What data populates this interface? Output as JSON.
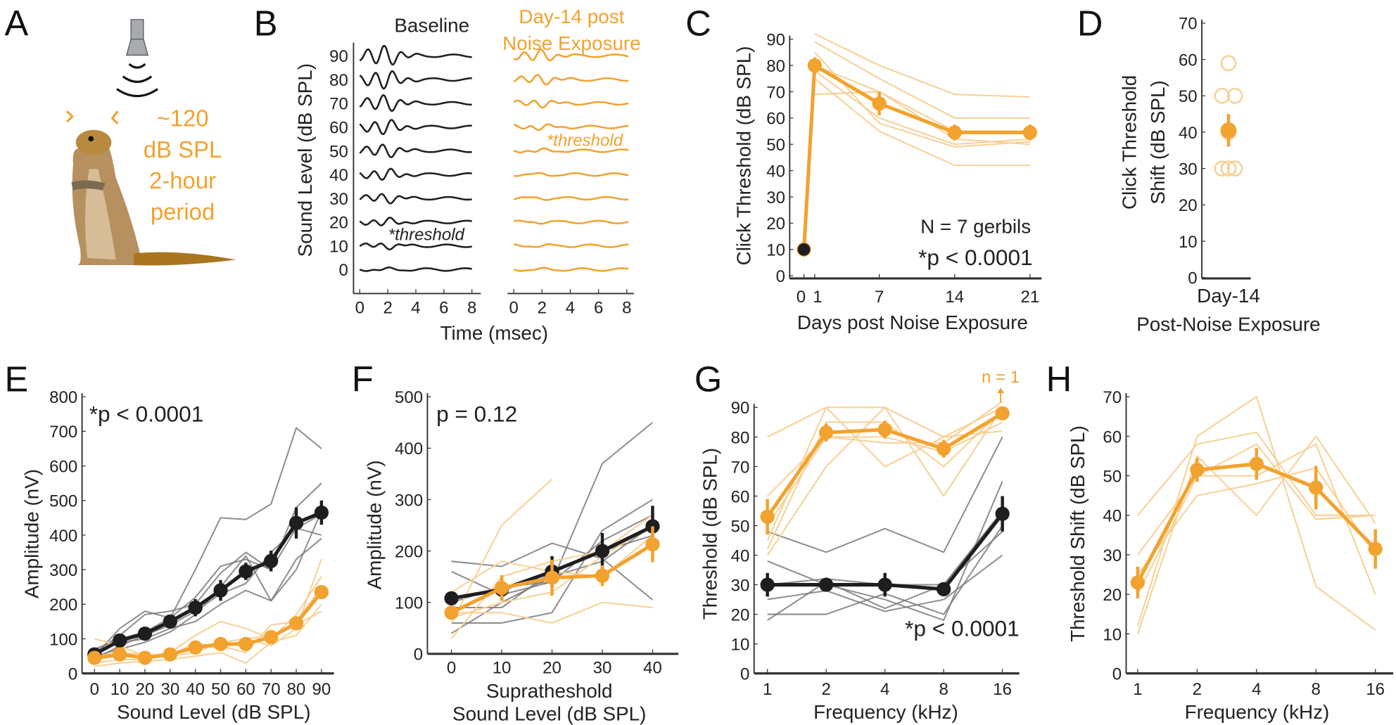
{
  "colors": {
    "orange": "#F2A22E",
    "orange_light": "#F8D095",
    "black": "#1e1e1e",
    "gray": "#7a7a7a",
    "speaker": "#A7ABB0"
  },
  "panel_a": {
    "label": "A",
    "exposure_text": [
      "~120",
      "dB SPL",
      "2-hour",
      "period"
    ],
    "icons": [
      "speaker-icon",
      "sound-wave-icon",
      "gerbil-illustration"
    ]
  },
  "chart_data": [
    {
      "panel": "B",
      "type": "line",
      "titles": {
        "baseline": "Baseline",
        "post": [
          "Day-14 post",
          "Noise Exposure"
        ]
      },
      "ylabel": "Sound Level (dB SPL)",
      "xlabel": "Time (msec)",
      "levels": [
        0,
        10,
        20,
        30,
        40,
        50,
        60,
        70,
        80,
        90
      ],
      "xticks": [
        0,
        2,
        4,
        6,
        8
      ],
      "xlim": [
        0,
        8
      ],
      "threshold_label": "*threshold",
      "thresholds": {
        "baseline": 10,
        "post": 50
      }
    },
    {
      "panel": "C",
      "type": "line",
      "ylabel": "Click Threshold (dB SPL)",
      "xlabel": "Days post Noise Exposure",
      "yticks": [
        0,
        10,
        20,
        30,
        40,
        50,
        60,
        70,
        80,
        90
      ],
      "ylim": [
        0,
        90
      ],
      "xticks": [
        0,
        1,
        7,
        14,
        21
      ],
      "xticklabels": [
        "0",
        "1",
        "7",
        "14",
        "21"
      ],
      "baseline_point": {
        "x": 0,
        "y": 10
      },
      "mean": {
        "x": [
          0,
          1,
          7,
          14,
          21
        ],
        "y": [
          10,
          80,
          65.5,
          54.5,
          54.5
        ],
        "err": [
          0,
          3,
          4.5,
          3,
          3
        ]
      },
      "individuals": {
        "x": [
          1,
          7,
          14,
          21
        ],
        "y": [
          [
            92,
            80,
            69,
            68
          ],
          [
            89,
            75,
            60,
            60
          ],
          [
            80,
            70,
            55,
            55
          ],
          [
            69,
            70,
            52,
            50
          ],
          [
            78,
            60,
            50,
            52
          ],
          [
            85,
            58,
            49,
            51
          ],
          [
            75,
            55,
            42,
            42
          ]
        ]
      },
      "annotations": [
        "N = 7 gerbils",
        "*p < 0.0001"
      ]
    },
    {
      "panel": "D",
      "type": "scatter",
      "ylabel": [
        "Click Threshold",
        "Shift (dB SPL)"
      ],
      "xlabel": "Post-Noise Exposure",
      "category": "Day-14",
      "yticks": [
        0,
        10,
        20,
        30,
        40,
        50,
        60,
        70
      ],
      "ylim": [
        0,
        70
      ],
      "values": [
        59,
        50,
        50,
        40,
        30,
        30,
        30
      ],
      "mean": 40.5,
      "err": 4.5
    },
    {
      "panel": "E",
      "type": "line",
      "ylabel": "Amplitude (nV)",
      "xlabel": "Sound Level (dB SPL)",
      "yticks": [
        0,
        100,
        200,
        300,
        400,
        500,
        600,
        700,
        800
      ],
      "ylim": [
        0,
        800
      ],
      "x": [
        0,
        10,
        20,
        30,
        40,
        50,
        60,
        70,
        80,
        90
      ],
      "series": [
        {
          "color": "black",
          "y": [
            55,
            95,
            115,
            150,
            190,
            240,
            295,
            325,
            435,
            465
          ],
          "err": [
            10,
            10,
            12,
            15,
            25,
            30,
            25,
            30,
            45,
            35
          ]
        },
        {
          "color": "orange",
          "y": [
            45,
            55,
            45,
            55,
            75,
            85,
            85,
            105,
            145,
            235
          ],
          "err": [
            15,
            10,
            12,
            10,
            12,
            12,
            15,
            12,
            15,
            20
          ]
        }
      ],
      "individuals_black": [
        [
          50,
          130,
          180,
          160,
          300,
          450,
          445,
          490,
          710,
          650
        ],
        [
          70,
          100,
          120,
          160,
          220,
          310,
          330,
          300,
          480,
          550
        ],
        [
          40,
          80,
          110,
          140,
          180,
          230,
          260,
          350,
          420,
          460
        ],
        [
          60,
          90,
          100,
          130,
          150,
          200,
          240,
          210,
          330,
          390
        ],
        [
          50,
          70,
          90,
          120,
          170,
          250,
          340,
          210,
          300,
          470
        ],
        [
          60,
          110,
          170,
          180,
          200,
          290,
          350,
          300,
          420,
          400
        ]
      ],
      "individuals_orange": [
        [
          100,
          80,
          50,
          60,
          110,
          150,
          130,
          100,
          170,
          280
        ],
        [
          30,
          40,
          40,
          60,
          70,
          80,
          60,
          140,
          150,
          250
        ],
        [
          20,
          30,
          35,
          40,
          50,
          60,
          30,
          90,
          110,
          200
        ],
        [
          50,
          60,
          55,
          50,
          60,
          90,
          100,
          80,
          130,
          330
        ],
        [
          40,
          50,
          45,
          50,
          90,
          70,
          100,
          110,
          140,
          180
        ]
      ],
      "annotation": "*p < 0.0001"
    },
    {
      "panel": "F",
      "type": "line",
      "ylabel": "Amplitude (nV)",
      "xlabel": [
        "Supratheshold",
        "Sound Level (dB SPL)"
      ],
      "yticks": [
        0,
        100,
        200,
        300,
        400,
        500
      ],
      "ylim": [
        0,
        500
      ],
      "x": [
        0,
        10,
        20,
        30,
        40
      ],
      "series": [
        {
          "color": "black",
          "y": [
            108,
            125,
            160,
            200,
            248
          ],
          "err": [
            12,
            20,
            30,
            35,
            40
          ]
        },
        {
          "color": "orange",
          "y": [
            80,
            128,
            148,
            152,
            213
          ],
          "err": [
            10,
            25,
            35,
            20,
            35
          ]
        }
      ],
      "individuals_black": [
        [
          180,
          170,
          215,
          185,
          105
        ],
        [
          160,
          115,
          140,
          370,
          450
        ],
        [
          60,
          60,
          80,
          240,
          300
        ],
        [
          40,
          100,
          150,
          180,
          250
        ],
        [
          100,
          130,
          140,
          220,
          270
        ],
        [
          90,
          90,
          160,
          200,
          230
        ]
      ],
      "individuals_orange": [
        [
          60,
          250,
          340
        ],
        [
          80,
          80,
          60,
          100,
          90
        ],
        [
          30,
          150,
          180,
          200,
          270
        ],
        [
          120,
          180,
          160,
          150,
          230
        ],
        [
          70,
          100,
          120,
          190,
          250
        ]
      ],
      "annotation": "p = 0.12"
    },
    {
      "panel": "G",
      "type": "line",
      "ylabel": "Threshold (dB SPL)",
      "xlabel": "Frequency (kHz)",
      "xscale": "log",
      "yticks": [
        0,
        10,
        20,
        30,
        40,
        50,
        60,
        70,
        80,
        90
      ],
      "ylim": [
        0,
        90
      ],
      "x": [
        1,
        2,
        4,
        8,
        16
      ],
      "series": [
        {
          "color": "orange",
          "y": [
            53,
            81.5,
            82.5,
            76,
            88
          ],
          "err": [
            6,
            3,
            3,
            3,
            2
          ]
        },
        {
          "color": "black",
          "y": [
            30,
            30,
            30,
            28.5,
            54
          ],
          "err": [
            4,
            2,
            4,
            2,
            6
          ]
        }
      ],
      "individuals_orange": [
        [
          80,
          90,
          90,
          80,
          82
        ],
        [
          40,
          70,
          90,
          60,
          90
        ],
        [
          45,
          90,
          70,
          80,
          90
        ],
        [
          50,
          80,
          78,
          78,
          92
        ],
        [
          42,
          85,
          85,
          70,
          89
        ],
        [
          60,
          80,
          80,
          75,
          85
        ]
      ],
      "individuals_black": [
        [
          48,
          41,
          49,
          41,
          80
        ],
        [
          38,
          30,
          25,
          18,
          65
        ],
        [
          20,
          20,
          27,
          20,
          50
        ],
        [
          18,
          31,
          22,
          30,
          48
        ],
        [
          25,
          28,
          21,
          25,
          40
        ],
        [
          30,
          32,
          30,
          30,
          55
        ]
      ],
      "annotation": "*p < 0.0001",
      "n_note": "n = 1"
    },
    {
      "panel": "H",
      "type": "line",
      "ylabel": "Threshold Shift (dB SPL)",
      "xlabel": "Frequency (kHz)",
      "xscale": "log",
      "yticks": [
        0,
        10,
        20,
        30,
        40,
        50,
        60,
        70
      ],
      "ylim": [
        0,
        70
      ],
      "x": [
        1,
        2,
        4,
        8,
        16
      ],
      "series": [
        {
          "color": "orange",
          "y": [
            23,
            51.5,
            53,
            47,
            31.5
          ],
          "err": [
            4,
            3,
            4,
            5.5,
            5
          ]
        }
      ],
      "individuals_orange": [
        [
          40,
          58,
          61,
          40,
          40
        ],
        [
          12,
          60,
          70,
          22,
          11
        ],
        [
          30,
          50,
          50,
          58,
          20
        ],
        [
          10,
          55,
          40,
          60,
          38
        ],
        [
          20,
          50,
          58,
          39,
          40
        ],
        [
          25,
          45,
          48,
          52,
          30
        ]
      ]
    }
  ]
}
